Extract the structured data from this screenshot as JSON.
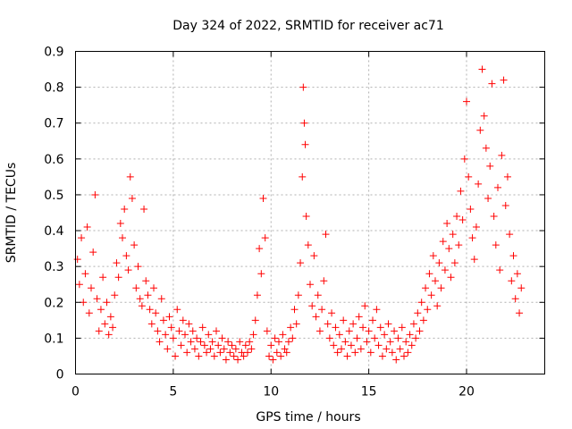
{
  "chart_data": {
    "type": "scatter",
    "title": "Day 324 of 2022, SRMTID for receiver ac71",
    "xlabel": "GPS time / hours",
    "ylabel": "SRMTID / TECUs",
    "xlim": [
      0,
      24
    ],
    "ylim": [
      0,
      0.9
    ],
    "x_ticks": [
      0,
      5,
      10,
      15,
      20
    ],
    "x_tick_labels": [
      "0",
      "5",
      "10",
      "15",
      "20"
    ],
    "y_ticks": [
      0,
      0.1,
      0.2,
      0.3,
      0.4,
      0.5,
      0.6,
      0.7,
      0.8,
      0.9
    ],
    "y_tick_labels": [
      "0",
      "0.1",
      "0.2",
      "0.3",
      "0.4",
      "0.5",
      "0.6",
      "0.7",
      "0.8",
      "0.9"
    ],
    "grid": true,
    "marker": "plus",
    "color": "#ff0000",
    "series": [
      {
        "name": "SRMTID",
        "points": [
          [
            0.1,
            0.32
          ],
          [
            0.2,
            0.25
          ],
          [
            0.3,
            0.38
          ],
          [
            0.4,
            0.2
          ],
          [
            0.5,
            0.28
          ],
          [
            0.6,
            0.41
          ],
          [
            0.7,
            0.17
          ],
          [
            0.8,
            0.24
          ],
          [
            0.9,
            0.34
          ],
          [
            1.0,
            0.5
          ],
          [
            1.1,
            0.21
          ],
          [
            1.2,
            0.12
          ],
          [
            1.3,
            0.18
          ],
          [
            1.4,
            0.27
          ],
          [
            1.5,
            0.14
          ],
          [
            1.6,
            0.2
          ],
          [
            1.7,
            0.11
          ],
          [
            1.8,
            0.16
          ],
          [
            1.9,
            0.13
          ],
          [
            2.0,
            0.22
          ],
          [
            2.1,
            0.31
          ],
          [
            2.2,
            0.27
          ],
          [
            2.3,
            0.42
          ],
          [
            2.4,
            0.38
          ],
          [
            2.5,
            0.46
          ],
          [
            2.6,
            0.33
          ],
          [
            2.7,
            0.29
          ],
          [
            2.8,
            0.55
          ],
          [
            2.9,
            0.49
          ],
          [
            3.0,
            0.36
          ],
          [
            3.1,
            0.24
          ],
          [
            3.2,
            0.3
          ],
          [
            3.3,
            0.21
          ],
          [
            3.4,
            0.19
          ],
          [
            3.5,
            0.46
          ],
          [
            3.6,
            0.26
          ],
          [
            3.7,
            0.22
          ],
          [
            3.8,
            0.18
          ],
          [
            3.9,
            0.14
          ],
          [
            4.0,
            0.24
          ],
          [
            4.1,
            0.17
          ],
          [
            4.2,
            0.12
          ],
          [
            4.3,
            0.09
          ],
          [
            4.4,
            0.21
          ],
          [
            4.5,
            0.15
          ],
          [
            4.6,
            0.11
          ],
          [
            4.7,
            0.07
          ],
          [
            4.8,
            0.16
          ],
          [
            4.9,
            0.13
          ],
          [
            5.0,
            0.1
          ],
          [
            5.1,
            0.05
          ],
          [
            5.2,
            0.18
          ],
          [
            5.3,
            0.12
          ],
          [
            5.4,
            0.08
          ],
          [
            5.5,
            0.15
          ],
          [
            5.6,
            0.11
          ],
          [
            5.7,
            0.06
          ],
          [
            5.8,
            0.14
          ],
          [
            5.9,
            0.09
          ],
          [
            6.0,
            0.12
          ],
          [
            6.1,
            0.07
          ],
          [
            6.2,
            0.1
          ],
          [
            6.3,
            0.05
          ],
          [
            6.4,
            0.09
          ],
          [
            6.5,
            0.13
          ],
          [
            6.6,
            0.08
          ],
          [
            6.7,
            0.06
          ],
          [
            6.8,
            0.11
          ],
          [
            6.9,
            0.07
          ],
          [
            7.0,
            0.09
          ],
          [
            7.1,
            0.05
          ],
          [
            7.2,
            0.12
          ],
          [
            7.3,
            0.08
          ],
          [
            7.4,
            0.06
          ],
          [
            7.5,
            0.1
          ],
          [
            7.6,
            0.07
          ],
          [
            7.7,
            0.04
          ],
          [
            7.8,
            0.09
          ],
          [
            7.9,
            0.06
          ],
          [
            8.0,
            0.08
          ],
          [
            8.1,
            0.05
          ],
          [
            8.2,
            0.07
          ],
          [
            8.3,
            0.04
          ],
          [
            8.4,
            0.09
          ],
          [
            8.5,
            0.06
          ],
          [
            8.6,
            0.05
          ],
          [
            8.7,
            0.08
          ],
          [
            8.8,
            0.06
          ],
          [
            8.9,
            0.09
          ],
          [
            9.0,
            0.07
          ],
          [
            9.1,
            0.11
          ],
          [
            9.2,
            0.15
          ],
          [
            9.3,
            0.22
          ],
          [
            9.4,
            0.35
          ],
          [
            9.5,
            0.28
          ],
          [
            9.6,
            0.49
          ],
          [
            9.7,
            0.38
          ],
          [
            9.8,
            0.12
          ],
          [
            9.9,
            0.05
          ],
          [
            10.0,
            0.08
          ],
          [
            10.1,
            0.04
          ],
          [
            10.2,
            0.1
          ],
          [
            10.3,
            0.06
          ],
          [
            10.4,
            0.09
          ],
          [
            10.5,
            0.05
          ],
          [
            10.6,
            0.11
          ],
          [
            10.7,
            0.07
          ],
          [
            10.8,
            0.06
          ],
          [
            10.9,
            0.09
          ],
          [
            11.0,
            0.13
          ],
          [
            11.1,
            0.1
          ],
          [
            11.2,
            0.18
          ],
          [
            11.3,
            0.14
          ],
          [
            11.4,
            0.22
          ],
          [
            11.5,
            0.31
          ],
          [
            11.6,
            0.55
          ],
          [
            11.65,
            0.8
          ],
          [
            11.7,
            0.7
          ],
          [
            11.75,
            0.64
          ],
          [
            11.8,
            0.44
          ],
          [
            11.9,
            0.36
          ],
          [
            12.0,
            0.25
          ],
          [
            12.1,
            0.19
          ],
          [
            12.2,
            0.33
          ],
          [
            12.3,
            0.16
          ],
          [
            12.4,
            0.22
          ],
          [
            12.5,
            0.12
          ],
          [
            12.6,
            0.18
          ],
          [
            12.7,
            0.26
          ],
          [
            12.8,
            0.39
          ],
          [
            12.9,
            0.14
          ],
          [
            13.0,
            0.1
          ],
          [
            13.1,
            0.17
          ],
          [
            13.2,
            0.08
          ],
          [
            13.3,
            0.13
          ],
          [
            13.4,
            0.06
          ],
          [
            13.5,
            0.11
          ],
          [
            13.6,
            0.07
          ],
          [
            13.7,
            0.15
          ],
          [
            13.8,
            0.09
          ],
          [
            13.9,
            0.05
          ],
          [
            14.0,
            0.12
          ],
          [
            14.1,
            0.08
          ],
          [
            14.2,
            0.14
          ],
          [
            14.3,
            0.06
          ],
          [
            14.4,
            0.1
          ],
          [
            14.5,
            0.16
          ],
          [
            14.6,
            0.07
          ],
          [
            14.7,
            0.13
          ],
          [
            14.8,
            0.19
          ],
          [
            14.9,
            0.09
          ],
          [
            15.0,
            0.12
          ],
          [
            15.1,
            0.06
          ],
          [
            15.2,
            0.15
          ],
          [
            15.3,
            0.1
          ],
          [
            15.4,
            0.18
          ],
          [
            15.5,
            0.08
          ],
          [
            15.6,
            0.13
          ],
          [
            15.7,
            0.05
          ],
          [
            15.8,
            0.11
          ],
          [
            15.9,
            0.07
          ],
          [
            16.0,
            0.14
          ],
          [
            16.1,
            0.09
          ],
          [
            16.2,
            0.06
          ],
          [
            16.3,
            0.12
          ],
          [
            16.4,
            0.04
          ],
          [
            16.5,
            0.1
          ],
          [
            16.6,
            0.07
          ],
          [
            16.7,
            0.13
          ],
          [
            16.8,
            0.05
          ],
          [
            16.9,
            0.09
          ],
          [
            17.0,
            0.06
          ],
          [
            17.1,
            0.11
          ],
          [
            17.2,
            0.08
          ],
          [
            17.3,
            0.14
          ],
          [
            17.4,
            0.1
          ],
          [
            17.5,
            0.17
          ],
          [
            17.6,
            0.12
          ],
          [
            17.7,
            0.2
          ],
          [
            17.8,
            0.15
          ],
          [
            17.9,
            0.24
          ],
          [
            18.0,
            0.18
          ],
          [
            18.1,
            0.28
          ],
          [
            18.2,
            0.22
          ],
          [
            18.3,
            0.33
          ],
          [
            18.4,
            0.26
          ],
          [
            18.5,
            0.19
          ],
          [
            18.6,
            0.31
          ],
          [
            18.7,
            0.24
          ],
          [
            18.8,
            0.37
          ],
          [
            18.9,
            0.29
          ],
          [
            19.0,
            0.42
          ],
          [
            19.1,
            0.35
          ],
          [
            19.2,
            0.27
          ],
          [
            19.3,
            0.39
          ],
          [
            19.4,
            0.31
          ],
          [
            19.5,
            0.44
          ],
          [
            19.6,
            0.36
          ],
          [
            19.7,
            0.51
          ],
          [
            19.8,
            0.43
          ],
          [
            19.9,
            0.6
          ],
          [
            20.0,
            0.76
          ],
          [
            20.1,
            0.55
          ],
          [
            20.2,
            0.46
          ],
          [
            20.3,
            0.38
          ],
          [
            20.4,
            0.32
          ],
          [
            20.5,
            0.41
          ],
          [
            20.6,
            0.53
          ],
          [
            20.7,
            0.68
          ],
          [
            20.8,
            0.85
          ],
          [
            20.9,
            0.72
          ],
          [
            21.0,
            0.63
          ],
          [
            21.1,
            0.49
          ],
          [
            21.2,
            0.58
          ],
          [
            21.3,
            0.81
          ],
          [
            21.4,
            0.44
          ],
          [
            21.5,
            0.36
          ],
          [
            21.6,
            0.52
          ],
          [
            21.7,
            0.29
          ],
          [
            21.8,
            0.61
          ],
          [
            21.9,
            0.82
          ],
          [
            22.0,
            0.47
          ],
          [
            22.1,
            0.55
          ],
          [
            22.2,
            0.39
          ],
          [
            22.3,
            0.26
          ],
          [
            22.4,
            0.33
          ],
          [
            22.5,
            0.21
          ],
          [
            22.6,
            0.28
          ],
          [
            22.7,
            0.17
          ],
          [
            22.8,
            0.24
          ]
        ]
      }
    ]
  }
}
